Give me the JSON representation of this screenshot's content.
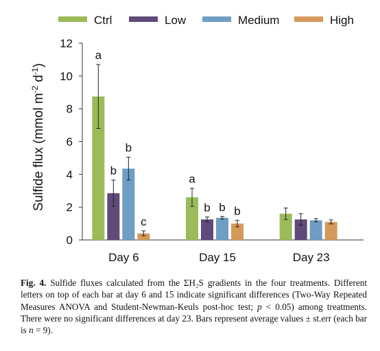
{
  "chart_data": {
    "type": "bar",
    "categories": [
      "Day 6",
      "Day 15",
      "Day 23"
    ],
    "series": [
      {
        "name": "Ctrl",
        "color": "#9bbb59",
        "values": [
          8.75,
          2.6,
          1.6
        ],
        "errors": [
          1.95,
          0.55,
          0.35
        ],
        "letters": [
          "a",
          "a",
          ""
        ]
      },
      {
        "name": "Low",
        "color": "#604a7b",
        "values": [
          2.85,
          1.25,
          1.25
        ],
        "errors": [
          0.8,
          0.15,
          0.35
        ],
        "letters": [
          "b",
          "b",
          ""
        ]
      },
      {
        "name": "Medium",
        "color": "#6e9ec4",
        "values": [
          4.35,
          1.35,
          1.2
        ],
        "errors": [
          0.7,
          0.08,
          0.1
        ],
        "letters": [
          "b",
          "b",
          ""
        ]
      },
      {
        "name": "High",
        "color": "#d49a5a",
        "values": [
          0.4,
          1.0,
          1.1
        ],
        "errors": [
          0.15,
          0.2,
          0.12
        ],
        "letters": [
          "c",
          "b",
          ""
        ]
      }
    ],
    "ylabel": "Sulfide flux (mmol m⁻² d⁻¹)",
    "ylim": [
      0,
      12
    ],
    "yticks": [
      "0",
      "2",
      "4",
      "6",
      "8",
      "10",
      "12"
    ],
    "grid": false,
    "legend": "top"
  },
  "caption": {
    "label": "Fig. 4.",
    "text": "Sulfide fluxes calculated from the ΣH₂S gradients in the four treatments. Different letters on top of each bar at day 6 and 15 indicate significant differences (Two-Way Repeated Measures ANOVA and Student-Newman-Keuls post-hoc test; p < 0.05) among treatments. There were no significant differences at day 23. Bars represent average values ± st.err (each bar is n = 9)."
  }
}
